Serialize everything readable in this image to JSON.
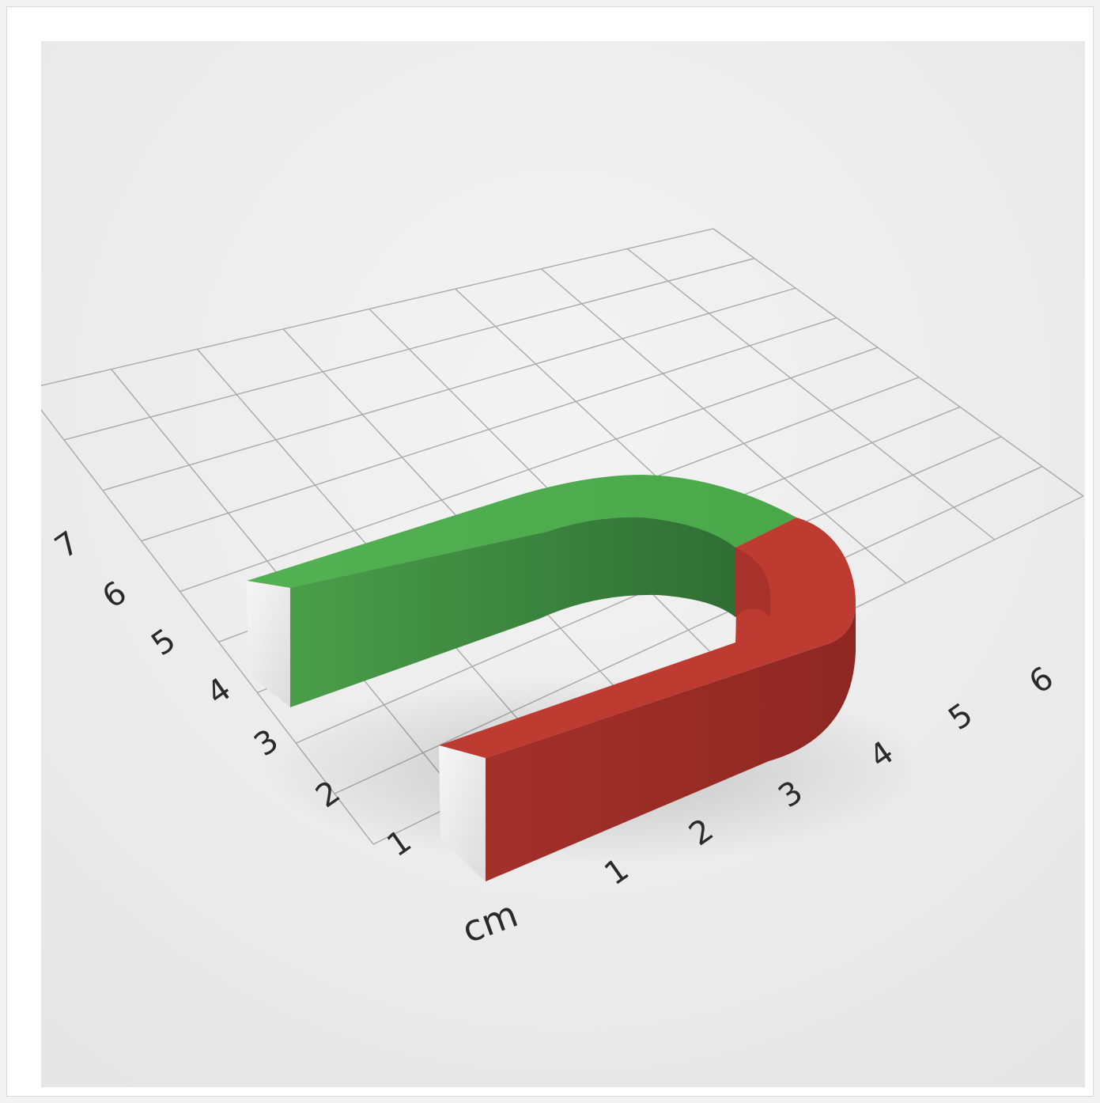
{
  "scene": {
    "subject": "horseshoe-magnet",
    "colors": {
      "background": "#ebebeb",
      "grid_line": "#a9a9a9",
      "north_pole": "#4fae4f",
      "north_pole_dark": "#3f8f3f",
      "south_pole": "#bf3b30",
      "south_pole_dark": "#9e2e26",
      "pole_face": "#f1f1f1"
    }
  },
  "axes": {
    "unit_label": "cm",
    "x_ticks": [
      "1",
      "2",
      "3",
      "4",
      "5",
      "6"
    ],
    "y_ticks": [
      "1",
      "2",
      "3",
      "4",
      "5",
      "6",
      "7"
    ]
  }
}
